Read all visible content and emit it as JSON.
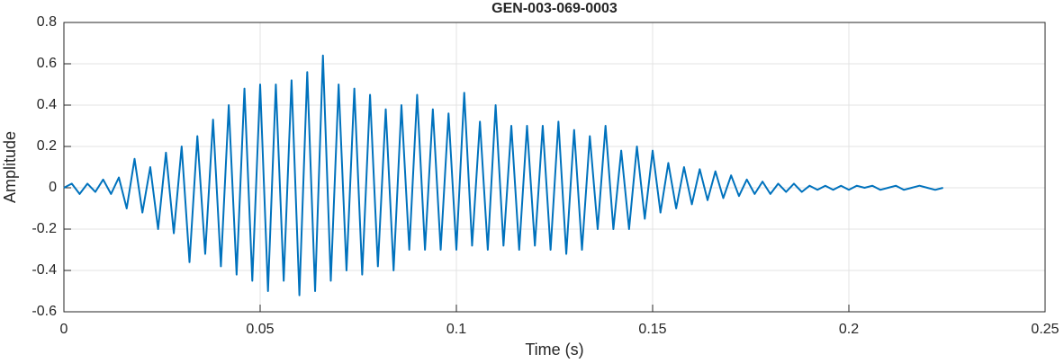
{
  "chart_data": {
    "type": "line",
    "title": "GEN-003-069-0003",
    "x_label": "Time (s)",
    "y_label": "Amplitude",
    "xlim": [
      0,
      0.25
    ],
    "xticks": [
      0,
      0.05,
      0.1,
      0.15,
      0.2,
      0.25
    ],
    "ylim": [
      -0.6,
      0.8
    ],
    "yticks": [
      -0.6,
      -0.4,
      -0.2,
      0,
      0.2,
      0.4,
      0.6,
      0.8
    ],
    "grid": true,
    "x": [
      0,
      0.002,
      0.004,
      0.006,
      0.008,
      0.01,
      0.012,
      0.014,
      0.016,
      0.018,
      0.02,
      0.022,
      0.024,
      0.026,
      0.028,
      0.03,
      0.032,
      0.034,
      0.036,
      0.038,
      0.04,
      0.042,
      0.044,
      0.046,
      0.048,
      0.05,
      0.052,
      0.054,
      0.056,
      0.058,
      0.06,
      0.062,
      0.064,
      0.066,
      0.068,
      0.07,
      0.072,
      0.074,
      0.076,
      0.078,
      0.08,
      0.082,
      0.084,
      0.086,
      0.088,
      0.09,
      0.092,
      0.094,
      0.096,
      0.098,
      0.1,
      0.102,
      0.104,
      0.106,
      0.108,
      0.11,
      0.112,
      0.114,
      0.116,
      0.118,
      0.12,
      0.122,
      0.124,
      0.126,
      0.128,
      0.13,
      0.132,
      0.134,
      0.136,
      0.138,
      0.14,
      0.142,
      0.144,
      0.146,
      0.148,
      0.15,
      0.152,
      0.154,
      0.156,
      0.158,
      0.16,
      0.162,
      0.164,
      0.166,
      0.168,
      0.17,
      0.172,
      0.174,
      0.176,
      0.178,
      0.18,
      0.182,
      0.184,
      0.186,
      0.188,
      0.19,
      0.192,
      0.194,
      0.196,
      0.198,
      0.2,
      0.202,
      0.204,
      0.206,
      0.208,
      0.21,
      0.212,
      0.214,
      0.216,
      0.218,
      0.22,
      0.222,
      0.224
    ],
    "series": [
      {
        "color": "#0072BD",
        "values": [
          0,
          0.02,
          -0.03,
          0.02,
          -0.02,
          0.04,
          -0.03,
          0.05,
          -0.1,
          0.14,
          -0.12,
          0.1,
          -0.2,
          0.17,
          -0.22,
          0.2,
          -0.36,
          0.25,
          -0.32,
          0.33,
          -0.38,
          0.4,
          -0.42,
          0.48,
          -0.45,
          0.5,
          -0.5,
          0.5,
          -0.45,
          0.52,
          -0.52,
          0.56,
          -0.5,
          0.64,
          -0.45,
          0.5,
          -0.4,
          0.48,
          -0.42,
          0.45,
          -0.38,
          0.38,
          -0.4,
          0.4,
          -0.3,
          0.45,
          -0.3,
          0.38,
          -0.3,
          0.36,
          -0.3,
          0.46,
          -0.28,
          0.32,
          -0.3,
          0.4,
          -0.28,
          0.3,
          -0.3,
          0.3,
          -0.28,
          0.3,
          -0.3,
          0.32,
          -0.32,
          0.28,
          -0.3,
          0.25,
          -0.2,
          0.3,
          -0.2,
          0.18,
          -0.2,
          0.2,
          -0.15,
          0.18,
          -0.12,
          0.12,
          -0.1,
          0.1,
          -0.08,
          0.09,
          -0.06,
          0.08,
          -0.05,
          0.06,
          -0.04,
          0.04,
          -0.03,
          0.03,
          -0.03,
          0.02,
          -0.02,
          0.02,
          -0.02,
          0.01,
          -0.01,
          0.01,
          -0.01,
          0.01,
          -0.01,
          0.01,
          0,
          0.01,
          -0.01,
          0,
          0.01,
          -0.01,
          0,
          0.01,
          0,
          -0.01,
          0
        ]
      }
    ]
  }
}
